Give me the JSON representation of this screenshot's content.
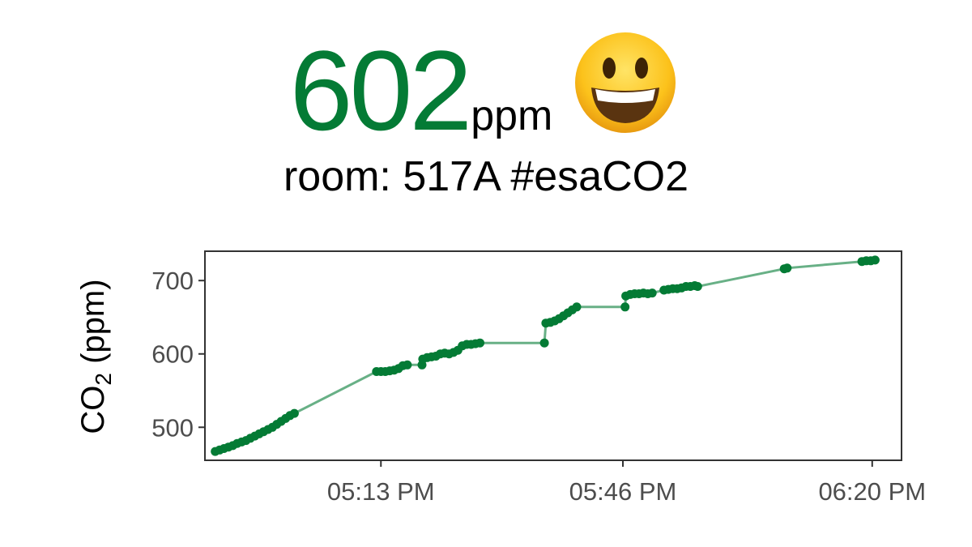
{
  "reading": {
    "value": "602",
    "unit": "ppm",
    "emoji": "grinning-face-icon",
    "color": "#047b35"
  },
  "room_line": "room: 517A #esaCO2",
  "chart_data": {
    "type": "line",
    "xlabel": "",
    "ylabel_main": "CO",
    "ylabel_sub": "2",
    "ylabel_tail": " (ppm)",
    "x_unit": "minutes after 04:50 PM",
    "xlim": [
      "04:49 PM",
      "06:24 PM"
    ],
    "ylim": [
      455,
      740
    ],
    "yticks": [
      500,
      600,
      700
    ],
    "xticks": [
      {
        "label": "05:13 PM",
        "t": 23
      },
      {
        "label": "05:46 PM",
        "t": 56
      },
      {
        "label": "06:20 PM",
        "t": 90
      }
    ],
    "grid": false,
    "series_color": "#047b35",
    "points": [
      {
        "t": 0.4,
        "y": 467
      },
      {
        "t": 1.0,
        "y": 469
      },
      {
        "t": 1.6,
        "y": 471
      },
      {
        "t": 2.2,
        "y": 473
      },
      {
        "t": 2.8,
        "y": 475
      },
      {
        "t": 3.4,
        "y": 478
      },
      {
        "t": 4.0,
        "y": 480
      },
      {
        "t": 4.6,
        "y": 482
      },
      {
        "t": 5.2,
        "y": 485
      },
      {
        "t": 5.8,
        "y": 488
      },
      {
        "t": 6.4,
        "y": 491
      },
      {
        "t": 7.0,
        "y": 494
      },
      {
        "t": 7.6,
        "y": 497
      },
      {
        "t": 8.2,
        "y": 500
      },
      {
        "t": 8.8,
        "y": 504
      },
      {
        "t": 9.4,
        "y": 508
      },
      {
        "t": 10.0,
        "y": 512
      },
      {
        "t": 10.6,
        "y": 516
      },
      {
        "t": 11.2,
        "y": 519
      },
      {
        "t": 22.4,
        "y": 576
      },
      {
        "t": 23.0,
        "y": 576
      },
      {
        "t": 23.6,
        "y": 576
      },
      {
        "t": 24.2,
        "y": 577
      },
      {
        "t": 24.8,
        "y": 578
      },
      {
        "t": 25.4,
        "y": 580
      },
      {
        "t": 26.0,
        "y": 584
      },
      {
        "t": 26.6,
        "y": 585
      },
      {
        "t": 28.6,
        "y": 585
      },
      {
        "t": 28.7,
        "y": 593
      },
      {
        "t": 29.3,
        "y": 595
      },
      {
        "t": 29.9,
        "y": 596
      },
      {
        "t": 30.5,
        "y": 597
      },
      {
        "t": 31.1,
        "y": 600
      },
      {
        "t": 31.7,
        "y": 601
      },
      {
        "t": 32.3,
        "y": 600
      },
      {
        "t": 32.9,
        "y": 602
      },
      {
        "t": 33.5,
        "y": 605
      },
      {
        "t": 34.1,
        "y": 611
      },
      {
        "t": 34.7,
        "y": 613
      },
      {
        "t": 35.3,
        "y": 613
      },
      {
        "t": 35.9,
        "y": 614
      },
      {
        "t": 36.5,
        "y": 615
      },
      {
        "t": 45.3,
        "y": 615
      },
      {
        "t": 45.5,
        "y": 642
      },
      {
        "t": 46.1,
        "y": 643
      },
      {
        "t": 46.7,
        "y": 645
      },
      {
        "t": 47.3,
        "y": 648
      },
      {
        "t": 47.9,
        "y": 652
      },
      {
        "t": 48.5,
        "y": 656
      },
      {
        "t": 49.1,
        "y": 660
      },
      {
        "t": 49.7,
        "y": 664
      },
      {
        "t": 56.3,
        "y": 664
      },
      {
        "t": 56.4,
        "y": 679
      },
      {
        "t": 57.0,
        "y": 681
      },
      {
        "t": 57.6,
        "y": 682
      },
      {
        "t": 58.2,
        "y": 682
      },
      {
        "t": 58.8,
        "y": 683
      },
      {
        "t": 59.4,
        "y": 682
      },
      {
        "t": 60.0,
        "y": 683
      },
      {
        "t": 61.6,
        "y": 687
      },
      {
        "t": 62.2,
        "y": 688
      },
      {
        "t": 62.8,
        "y": 689
      },
      {
        "t": 63.4,
        "y": 689
      },
      {
        "t": 64.0,
        "y": 690
      },
      {
        "t": 64.6,
        "y": 692
      },
      {
        "t": 65.2,
        "y": 692
      },
      {
        "t": 65.8,
        "y": 693
      },
      {
        "t": 66.2,
        "y": 692
      },
      {
        "t": 78.0,
        "y": 716
      },
      {
        "t": 78.4,
        "y": 717
      },
      {
        "t": 88.6,
        "y": 726
      },
      {
        "t": 89.2,
        "y": 727
      },
      {
        "t": 89.8,
        "y": 727
      },
      {
        "t": 90.4,
        "y": 728
      }
    ]
  }
}
